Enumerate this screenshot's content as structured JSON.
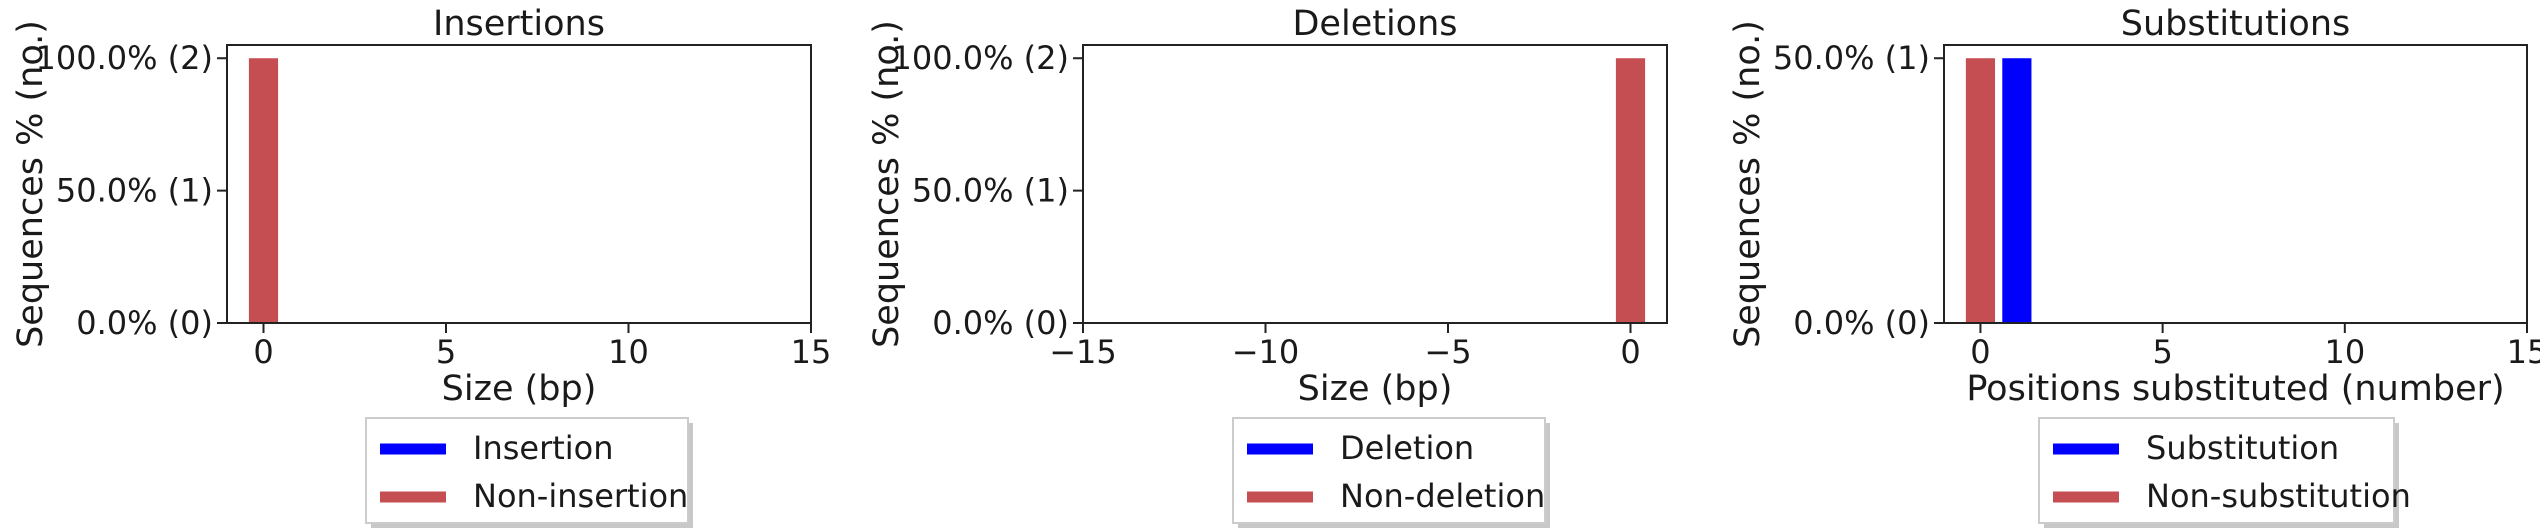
{
  "chart_data": [
    {
      "type": "bar",
      "title": "Insertions",
      "xlabel": "Size (bp)",
      "ylabel": "Sequences % (no.)",
      "xlim": [
        -1,
        15
      ],
      "ylim": [
        0,
        2.1
      ],
      "x_ticks": [
        0,
        5,
        10,
        15
      ],
      "x_tick_labels": [
        "0",
        "5",
        "10",
        "15"
      ],
      "y_ticks": [
        0,
        1,
        2
      ],
      "y_tick_labels": [
        "0.0% (0)",
        "50.0% (1)",
        "100.0% (2)"
      ],
      "bar_width": 0.8,
      "series": [
        {
          "name": "Insertion",
          "color": "#0000ff",
          "points": []
        },
        {
          "name": "Non-insertion",
          "color": "#c44e52",
          "points": [
            {
              "x": 0,
              "y": 2
            }
          ]
        }
      ],
      "legend": {
        "placement": "below",
        "entries": [
          "Insertion",
          "Non-insertion"
        ]
      },
      "grid": false
    },
    {
      "type": "bar",
      "title": "Deletions",
      "xlabel": "Size (bp)",
      "ylabel": "Sequences % (no.)",
      "xlim": [
        -15,
        1
      ],
      "ylim": [
        0,
        2.1
      ],
      "x_ticks": [
        -15,
        -10,
        -5,
        0
      ],
      "x_tick_labels": [
        "−15",
        "−10",
        "−5",
        "0"
      ],
      "y_ticks": [
        0,
        1,
        2
      ],
      "y_tick_labels": [
        "0.0% (0)",
        "50.0% (1)",
        "100.0% (2)"
      ],
      "bar_width": 0.8,
      "series": [
        {
          "name": "Deletion",
          "color": "#0000ff",
          "points": []
        },
        {
          "name": "Non-deletion",
          "color": "#c44e52",
          "points": [
            {
              "x": 0,
              "y": 2
            }
          ]
        }
      ],
      "legend": {
        "placement": "below",
        "entries": [
          "Deletion",
          "Non-deletion"
        ]
      },
      "grid": false
    },
    {
      "type": "bar",
      "title": "Substitutions",
      "xlabel": "Positions substituted (number)",
      "ylabel": "Sequences % (no.)",
      "xlim": [
        -1,
        15
      ],
      "ylim": [
        0,
        1.05
      ],
      "x_ticks": [
        0,
        5,
        10,
        15
      ],
      "x_tick_labels": [
        "0",
        "5",
        "10",
        "15"
      ],
      "y_ticks": [
        0,
        1
      ],
      "y_tick_labels": [
        "0.0% (0)",
        "50.0% (1)"
      ],
      "bar_width": 0.8,
      "series": [
        {
          "name": "Substitution",
          "color": "#0000ff",
          "points": [
            {
              "x": 1,
              "y": 1
            }
          ]
        },
        {
          "name": "Non-substitution",
          "color": "#c44e52",
          "points": [
            {
              "x": 0,
              "y": 1
            }
          ]
        }
      ],
      "legend": {
        "placement": "below",
        "entries": [
          "Substitution",
          "Non-substitution"
        ]
      },
      "grid": false
    }
  ]
}
